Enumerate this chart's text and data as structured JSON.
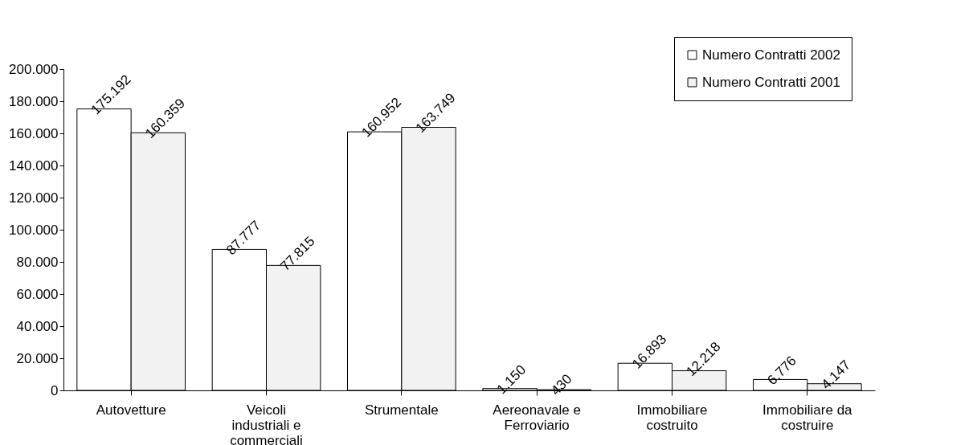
{
  "chart_data": {
    "type": "bar",
    "categories": [
      "Autovetture",
      "Veicoli industriali e commerciali",
      "Strumentale",
      "Aereonavale e Ferroviario",
      "Immobiliare costruito",
      "Immobiliare da costruire"
    ],
    "series": [
      {
        "name": "Numero Contratti 2002",
        "color": "#ffffff",
        "values": [
          175192,
          87777,
          160952,
          1150,
          16893,
          6776
        ],
        "value_labels": [
          "175.192",
          "87.777",
          "160.952",
          "1.150",
          "16.893",
          "6.776"
        ]
      },
      {
        "name": "Numero Contratti 2001",
        "color": "#f2f2f2",
        "values": [
          160359,
          77815,
          163749,
          430,
          12218,
          4147
        ],
        "value_labels": [
          "160.359",
          "77.815",
          "163.749",
          "430",
          "12.218",
          "4.147"
        ]
      }
    ],
    "ylim": [
      0,
      200000
    ],
    "yticks": [
      {
        "value": 0,
        "label": "0"
      },
      {
        "value": 20000,
        "label": "20.000"
      },
      {
        "value": 40000,
        "label": "40.000"
      },
      {
        "value": 60000,
        "label": "60.000"
      },
      {
        "value": 80000,
        "label": "80.000"
      },
      {
        "value": 100000,
        "label": "100.000"
      },
      {
        "value": 120000,
        "label": "120.000"
      },
      {
        "value": 140000,
        "label": "140.000"
      },
      {
        "value": 160000,
        "label": "160.000"
      },
      {
        "value": 180000,
        "label": "180.000"
      },
      {
        "value": 200000,
        "label": "200.000"
      }
    ],
    "grid": false,
    "legend": "top right"
  }
}
